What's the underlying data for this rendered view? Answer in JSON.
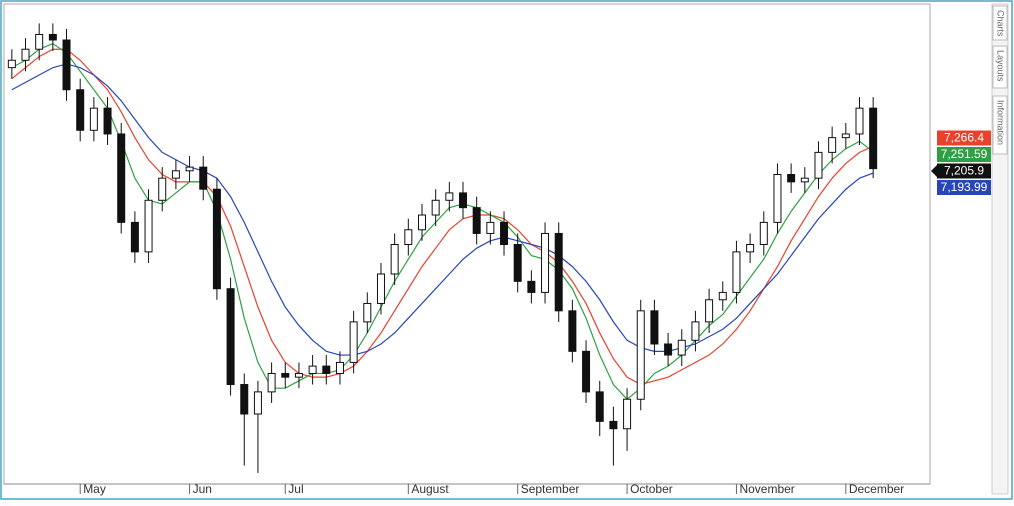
{
  "chart_data": {
    "type": "candlestick",
    "categories": [
      null,
      null,
      null,
      null,
      null,
      "May",
      null,
      null,
      null,
      null,
      null,
      null,
      null,
      "Jun",
      null,
      null,
      null,
      null,
      null,
      null,
      "Jul",
      null,
      null,
      null,
      null,
      null,
      null,
      null,
      null,
      "August",
      null,
      null,
      null,
      null,
      null,
      null,
      null,
      "September",
      null,
      null,
      null,
      null,
      null,
      null,
      null,
      "October",
      null,
      null,
      null,
      null,
      null,
      null,
      null,
      "November",
      null,
      null,
      null,
      null,
      null,
      null,
      null,
      "December",
      null,
      null
    ],
    "open": [
      7480,
      7500,
      7530,
      7570,
      7555,
      7420,
      7310,
      7370,
      7300,
      7060,
      6980,
      7120,
      7180,
      7200,
      7210,
      7150,
      6880,
      6620,
      6540,
      6600,
      6650,
      6640,
      6650,
      6670,
      6650,
      6680,
      6790,
      6840,
      6920,
      7000,
      7040,
      7080,
      7120,
      7140,
      7100,
      7030,
      7060,
      7000,
      6900,
      6870,
      7030,
      6820,
      6710,
      6600,
      6520,
      6500,
      6580,
      6820,
      6730,
      6700,
      6740,
      6790,
      6850,
      6870,
      6980,
      7000,
      7060,
      7190,
      7170,
      7180,
      7250,
      7290,
      7300,
      7370
    ],
    "high": [
      7530,
      7560,
      7600,
      7600,
      7585,
      7450,
      7400,
      7400,
      7330,
      7090,
      7150,
      7210,
      7230,
      7240,
      7240,
      7180,
      6910,
      6650,
      6630,
      6680,
      6680,
      6680,
      6700,
      6700,
      6710,
      6820,
      6870,
      6950,
      7030,
      7070,
      7110,
      7150,
      7170,
      7170,
      7130,
      7090,
      7090,
      7030,
      6930,
      7060,
      7060,
      6850,
      6740,
      6630,
      6560,
      6610,
      6850,
      6850,
      6760,
      6770,
      6820,
      6880,
      6900,
      7010,
      7030,
      7090,
      7220,
      7220,
      7210,
      7280,
      7320,
      7330,
      7400,
      7400
    ],
    "low": [
      7450,
      7470,
      7500,
      7525,
      7390,
      7280,
      7280,
      7270,
      7030,
      6950,
      6950,
      7090,
      7150,
      7170,
      7120,
      6850,
      6590,
      6400,
      6380,
      6570,
      6610,
      6610,
      6620,
      6620,
      6620,
      6650,
      6760,
      6810,
      6890,
      6970,
      7010,
      7050,
      7090,
      7070,
      7000,
      7000,
      6970,
      6870,
      6840,
      6840,
      6790,
      6680,
      6570,
      6480,
      6400,
      6440,
      6550,
      6700,
      6670,
      6670,
      6710,
      6760,
      6820,
      6840,
      6950,
      6970,
      7030,
      7140,
      7140,
      7150,
      7220,
      7260,
      7270,
      7180
    ],
    "close": [
      7500,
      7530,
      7570,
      7555,
      7420,
      7310,
      7370,
      7300,
      7060,
      6980,
      7120,
      7180,
      7200,
      7210,
      7150,
      6880,
      6620,
      6540,
      6600,
      6650,
      6640,
      6650,
      6670,
      6650,
      6680,
      6790,
      6840,
      6920,
      7000,
      7040,
      7080,
      7120,
      7140,
      7100,
      7030,
      7060,
      7000,
      6900,
      6870,
      7030,
      6820,
      6710,
      6600,
      6520,
      6500,
      6580,
      6820,
      6730,
      6700,
      6740,
      6790,
      6850,
      6870,
      6980,
      7000,
      7060,
      7190,
      7170,
      7180,
      7250,
      7290,
      7300,
      7370,
      7205.9
    ],
    "moving_averages": [
      {
        "color": "#e8412c",
        "values": [
          7450,
          7480,
          7510,
          7530,
          7530,
          7500,
          7460,
          7420,
          7360,
          7290,
          7230,
          7190,
          7170,
          7170,
          7170,
          7130,
          7050,
          6940,
          6830,
          6740,
          6680,
          6650,
          6640,
          6640,
          6650,
          6670,
          6710,
          6760,
          6820,
          6880,
          6940,
          6990,
          7040,
          7070,
          7080,
          7080,
          7070,
          7040,
          7000,
          6980,
          6950,
          6900,
          6840,
          6760,
          6690,
          6640,
          6620,
          6630,
          6640,
          6660,
          6680,
          6700,
          6730,
          6770,
          6820,
          6880,
          6940,
          7010,
          7070,
          7130,
          7180,
          7220,
          7250,
          7266.4
        ]
      },
      {
        "color": "#2ea043",
        "values": [
          7480,
          7500,
          7530,
          7545,
          7520,
          7470,
          7420,
          7370,
          7280,
          7180,
          7120,
          7110,
          7140,
          7170,
          7170,
          7090,
          6960,
          6800,
          6680,
          6610,
          6610,
          6630,
          6650,
          6650,
          6660,
          6700,
          6760,
          6830,
          6900,
          6960,
          7020,
          7060,
          7100,
          7110,
          7100,
          7080,
          7060,
          7020,
          6970,
          6960,
          6930,
          6880,
          6800,
          6700,
          6620,
          6580,
          6610,
          6650,
          6670,
          6700,
          6740,
          6780,
          6810,
          6860,
          6910,
          6960,
          7030,
          7090,
          7140,
          7190,
          7230,
          7260,
          7280,
          7251.59
        ]
      },
      {
        "color": "#2946b8",
        "values": [
          7420,
          7440,
          7460,
          7480,
          7490,
          7480,
          7460,
          7430,
          7390,
          7340,
          7290,
          7250,
          7230,
          7210,
          7200,
          7180,
          7130,
          7060,
          6980,
          6900,
          6830,
          6780,
          6740,
          6710,
          6700,
          6700,
          6710,
          6730,
          6760,
          6800,
          6840,
          6880,
          6920,
          6960,
          6990,
          7010,
          7020,
          7010,
          7000,
          6990,
          6970,
          6940,
          6900,
          6850,
          6790,
          6740,
          6720,
          6710,
          6710,
          6720,
          6730,
          6750,
          6770,
          6800,
          6840,
          6880,
          6920,
          6970,
          7020,
          7070,
          7110,
          7150,
          7180,
          7193.99
        ]
      }
    ],
    "price_labels": [
      {
        "value": 7266.4,
        "label": "7,266.4",
        "color": "#e8412c"
      },
      {
        "value": 7251.59,
        "label": "7,251.59",
        "color": "#2ea043"
      },
      {
        "value": 7205.9,
        "label": "7,205.9",
        "color": "#111111"
      },
      {
        "value": 7193.99,
        "label": "7,193.99",
        "color": "#2946b8"
      }
    ],
    "ylim": [
      6350,
      7650
    ]
  },
  "sidebar_tabs": [
    "Charts",
    "Layouts",
    "Information"
  ]
}
